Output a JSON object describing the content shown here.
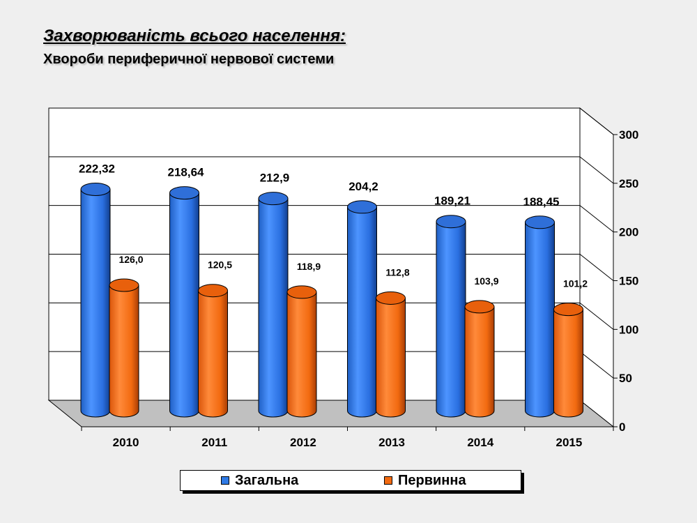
{
  "header": {
    "title": "Захворюваність всього населення:",
    "subtitle": "Хвороби периферичної нервової системи"
  },
  "chart_data": {
    "type": "bar",
    "categories": [
      "2010",
      "2011",
      "2012",
      "2013",
      "2014",
      "2015"
    ],
    "series": [
      {
        "name": "Загальна",
        "values": [
          222.32,
          218.64,
          212.9,
          204.2,
          189.21,
          188.45
        ],
        "labels": [
          "222,32",
          "218,64",
          "212,9",
          "204,2",
          "189,21",
          "188,45"
        ],
        "color": "#2f7ae5"
      },
      {
        "name": "Первинна",
        "values": [
          126.0,
          120.5,
          118.9,
          112.8,
          103.9,
          101.2
        ],
        "labels": [
          "126,0",
          "120,5",
          "118,9",
          "112,8",
          "103,9",
          "101,2"
        ],
        "color": "#f26a10"
      }
    ],
    "ylim": [
      0,
      300
    ],
    "yticks": [
      0,
      50,
      100,
      150,
      200,
      250,
      300
    ],
    "grid": true,
    "legend": "bottom",
    "style": "3d-cylinder"
  }
}
